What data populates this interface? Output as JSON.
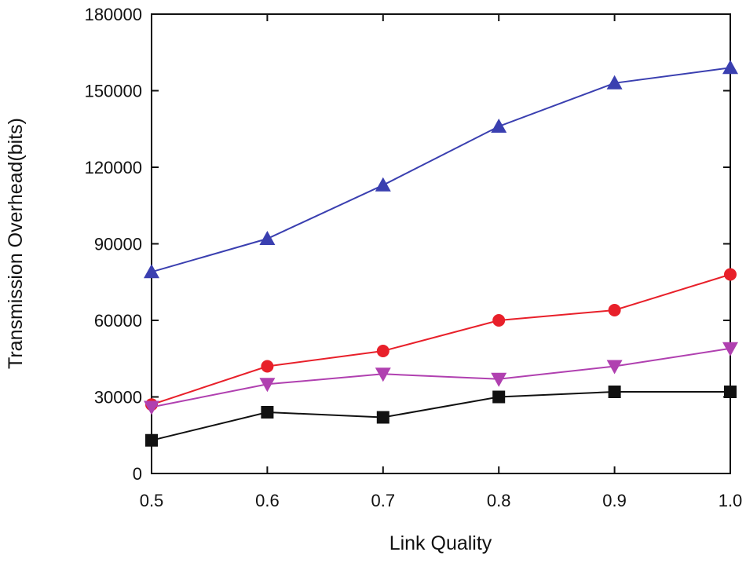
{
  "chart_data": {
    "type": "line",
    "title": "",
    "xlabel": "Link Quality",
    "ylabel": "Transmission Overhead(bits)",
    "x": [
      0.5,
      0.6,
      0.7,
      0.8,
      0.9,
      1.0
    ],
    "x_tick_labels": [
      "0.5",
      "0.6",
      "0.7",
      "0.8",
      "0.9",
      "1.0"
    ],
    "y_ticks": [
      0,
      30000,
      60000,
      90000,
      120000,
      150000,
      180000
    ],
    "y_tick_labels": [
      "0",
      "30000",
      "60000",
      "90000",
      "120000",
      "150000",
      "180000"
    ],
    "xlim": [
      0.5,
      1.0
    ],
    "ylim": [
      0,
      180000
    ],
    "grid": false,
    "legend": "none",
    "series": [
      {
        "color": "#3a3fb0",
        "marker": "triangle-up",
        "values": [
          79000,
          92000,
          113000,
          136000,
          153000,
          159000
        ]
      },
      {
        "color": "#e8202a",
        "marker": "circle",
        "values": [
          27000,
          42000,
          48000,
          60000,
          64000,
          78000
        ]
      },
      {
        "color": "#b040b0",
        "marker": "triangle-down",
        "values": [
          26000,
          35000,
          39000,
          37000,
          42000,
          49000
        ]
      },
      {
        "color": "#111111",
        "marker": "square",
        "values": [
          13000,
          24000,
          22000,
          30000,
          32000,
          32000
        ]
      }
    ]
  }
}
